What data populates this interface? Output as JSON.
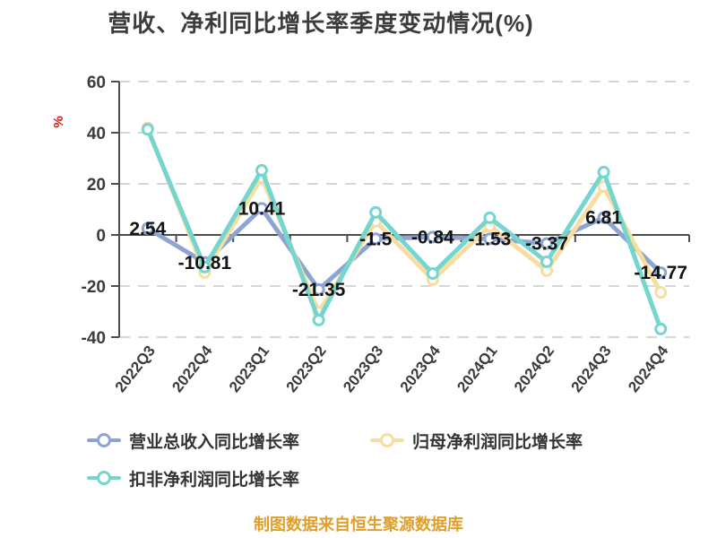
{
  "title": "营收、净利同比增长率季度变动情况(%)",
  "footer": "制图数据来自恒生聚源数据库",
  "axis": {
    "unit_label": "%",
    "unit_color": "#e01414",
    "y_ticks": [
      60,
      40,
      20,
      0,
      -20,
      -40
    ],
    "ylim": [
      -40,
      60
    ]
  },
  "chart_data": {
    "type": "line",
    "title": "营收、净利同比增长率季度变动情况(%)",
    "xlabel": "",
    "ylabel": "%",
    "ylim": [
      -40,
      60
    ],
    "grid": "dashed-horizontal",
    "legend_position": "bottom",
    "categories": [
      "2022Q3",
      "2022Q4",
      "2023Q1",
      "2023Q2",
      "2023Q3",
      "2023Q4",
      "2024Q1",
      "2024Q2",
      "2024Q3",
      "2024Q4"
    ],
    "series": [
      {
        "name": "营业总收入同比增长率",
        "color": "#8ea4d2",
        "values": [
          2.54,
          -10.81,
          10.41,
          -21.35,
          -1.5,
          -0.84,
          -1.53,
          -3.37,
          6.81,
          -14.77
        ],
        "labels": [
          "2.54",
          "-10.81",
          "10.41",
          "-21.35",
          "-1.5",
          "-0.84",
          "-1.53",
          "-3.37",
          "6.81",
          "-14.77"
        ],
        "show_labels": true
      },
      {
        "name": "归母净利润同比增长率",
        "color": "#f8dda0",
        "values": [
          41.9,
          -14.7,
          22.5,
          -30.2,
          5.3,
          -17.5,
          3.5,
          -14.0,
          18.9,
          -22.5
        ],
        "show_labels": false
      },
      {
        "name": "扣非净利润同比增长率",
        "color": "#74d6cf",
        "values": [
          41.3,
          -12.6,
          25.3,
          -33.3,
          8.8,
          -15.1,
          6.7,
          -10.5,
          24.6,
          -36.8
        ],
        "show_labels": false
      }
    ]
  },
  "legend": {
    "items": [
      {
        "label": "营业总收入同比增长率",
        "color": "#8ea4d2"
      },
      {
        "label": "归母净利润同比增长率",
        "color": "#f8dda0"
      },
      {
        "label": "扣非净利润同比增长率",
        "color": "#74d6cf"
      }
    ]
  }
}
